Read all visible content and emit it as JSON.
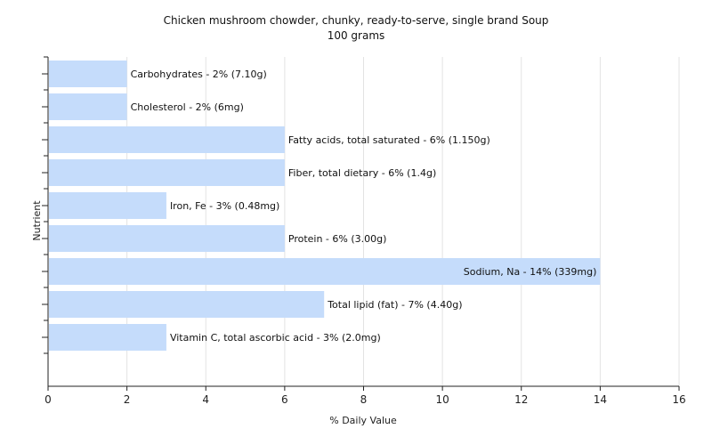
{
  "chart_data": {
    "type": "bar",
    "orientation": "horizontal",
    "title": "Chicken mushroom chowder, chunky, ready-to-serve, single brand Soup",
    "subtitle": "100 grams",
    "xlabel": "% Daily Value",
    "ylabel": "Nutrient",
    "xlim": [
      0,
      16
    ],
    "xticks": [
      0,
      2,
      4,
      6,
      8,
      10,
      12,
      14,
      16
    ],
    "grid": "vertical",
    "legend": "none",
    "bar_color": "#c5dcfb",
    "categories": [
      "Carbohydrates",
      "Cholesterol",
      "Fatty acids, total saturated",
      "Fiber, total dietary",
      "Iron, Fe",
      "Protein",
      "Sodium, Na",
      "Total lipid (fat)",
      "Vitamin C, total ascorbic acid"
    ],
    "values": [
      2,
      2,
      6,
      6,
      3,
      6,
      14,
      7,
      3
    ],
    "labels": [
      "Carbohydrates - 2% (7.10g)",
      "Cholesterol - 2% (6mg)",
      "Fatty acids, total saturated - 6% (1.150g)",
      "Fiber, total dietary - 6% (1.4g)",
      "Iron, Fe - 3% (0.48mg)",
      "Protein - 6% (3.00g)",
      "Sodium, Na - 14% (339mg)",
      "Total lipid (fat) - 7% (4.40g)",
      "Vitamin C, total ascorbic acid - 3% (2.0mg)"
    ]
  }
}
